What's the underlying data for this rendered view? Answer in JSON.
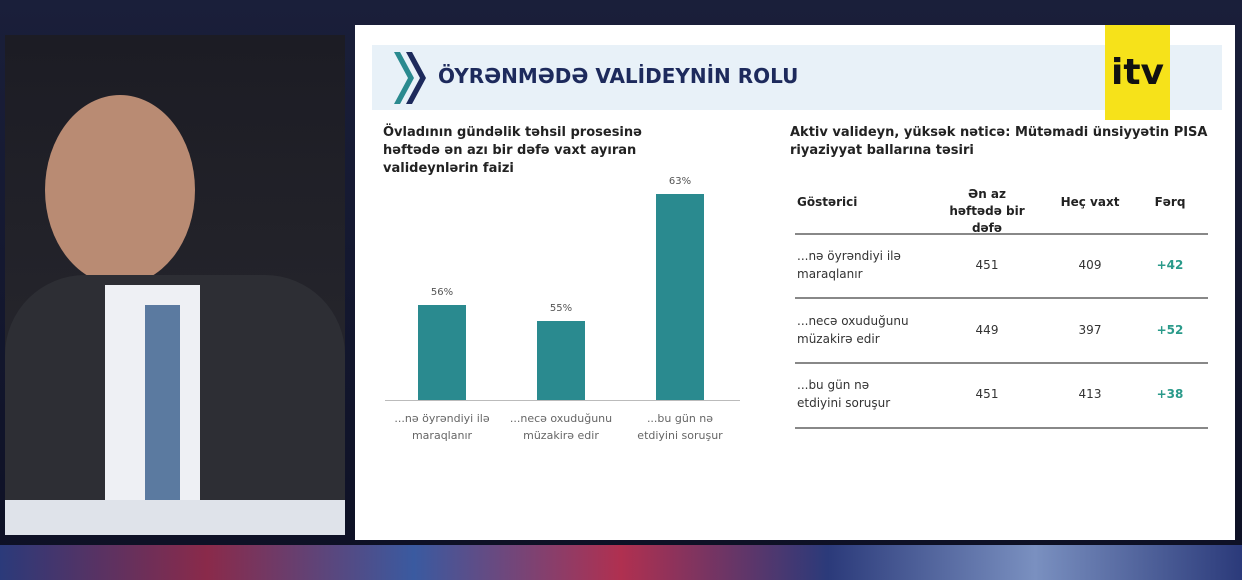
{
  "header": {
    "title": "ÖYRƏNMƏDƏ VALİDEYNİN ROLU",
    "logo": "itv"
  },
  "chart_data": {
    "type": "bar",
    "title": "Övladının gündəlik təhsil prosesinə həftədə ən azı bir dəfə vaxt ayıran valideynlərin faizi",
    "categories": [
      "...nə öyrəndiyi ilə maraqlanır",
      "...necə oxuduğunu müzakirə edir",
      "...bu gün nə etdiyini soruşur"
    ],
    "values": [
      56,
      55,
      63
    ],
    "value_labels": [
      "56%",
      "55%",
      "63%"
    ],
    "color": "#2a8a8f",
    "ylim": [
      50,
      64
    ]
  },
  "table": {
    "title": "Aktiv valideyn, yüksək nəticə: Mütəmadi ünsiyyətin PISA riyaziyyat ballarına təsiri",
    "columns": [
      "Göstərici",
      "Ən az həftədə bir dəfə",
      "Heç vaxt",
      "Fərq"
    ],
    "rows": [
      [
        "...nə öyrəndiyi ilə maraqlanır",
        451,
        409,
        "+42"
      ],
      [
        "...necə oxuduğunu müzakirə edir",
        449,
        397,
        "+52"
      ],
      [
        "...bu gün nə etdiyini soruşur",
        451,
        413,
        "+38"
      ]
    ]
  }
}
